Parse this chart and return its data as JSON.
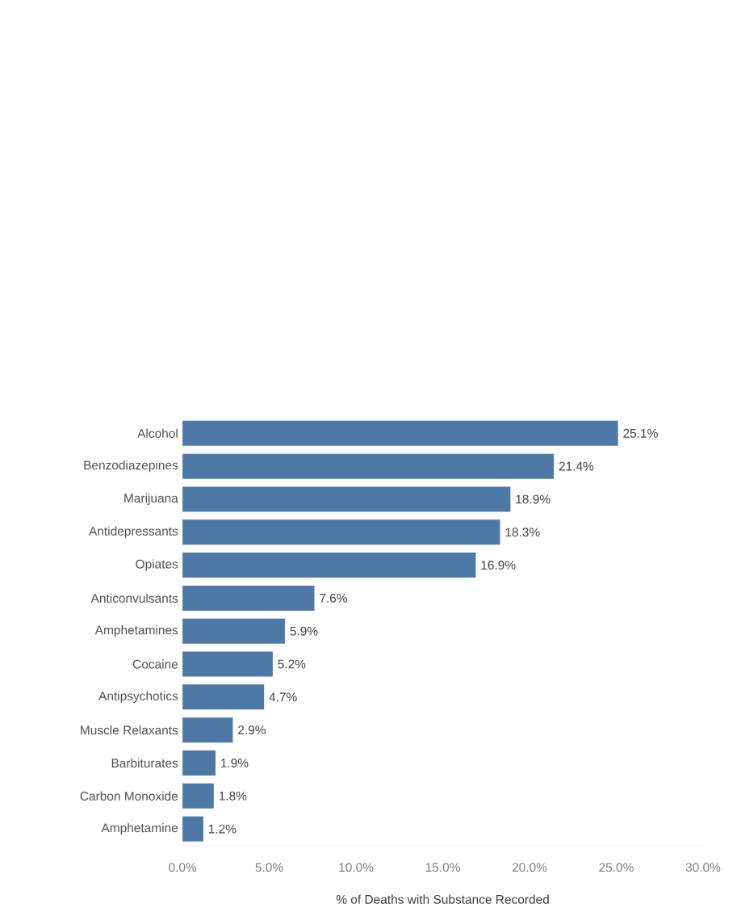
{
  "chart_data": {
    "type": "bar",
    "orientation": "horizontal",
    "xlabel": "% of Deaths with Substance Recorded",
    "categories": [
      "Alcohol",
      "Benzodiazepines",
      "Marijuana",
      "Antidepressants",
      "Opiates",
      "Anticonvulsants",
      "Amphetamines",
      "Cocaine",
      "Antipsychotics",
      "Muscle Relaxants",
      "Barbiturates",
      "Carbon Monoxide",
      "Amphetamine"
    ],
    "values": [
      25.1,
      21.4,
      18.9,
      18.3,
      16.9,
      7.6,
      5.9,
      5.2,
      4.7,
      2.9,
      1.9,
      1.8,
      1.2
    ],
    "value_labels": [
      "25.1%",
      "21.4%",
      "18.9%",
      "18.3%",
      "16.9%",
      "7.6%",
      "5.9%",
      "5.2%",
      "4.7%",
      "2.9%",
      "1.9%",
      "1.8%",
      "1.2%"
    ],
    "color": "#4e79a7",
    "xlim": [
      0,
      30
    ],
    "xticks": [
      {
        "value": 0,
        "label": "0.0%"
      },
      {
        "value": 5,
        "label": "5.0%"
      },
      {
        "value": 10,
        "label": "10.0%"
      },
      {
        "value": 15,
        "label": "15.0%"
      },
      {
        "value": 20,
        "label": "20.0%"
      },
      {
        "value": 25,
        "label": "25.0%"
      },
      {
        "value": 30,
        "label": "30.0%"
      }
    ]
  }
}
